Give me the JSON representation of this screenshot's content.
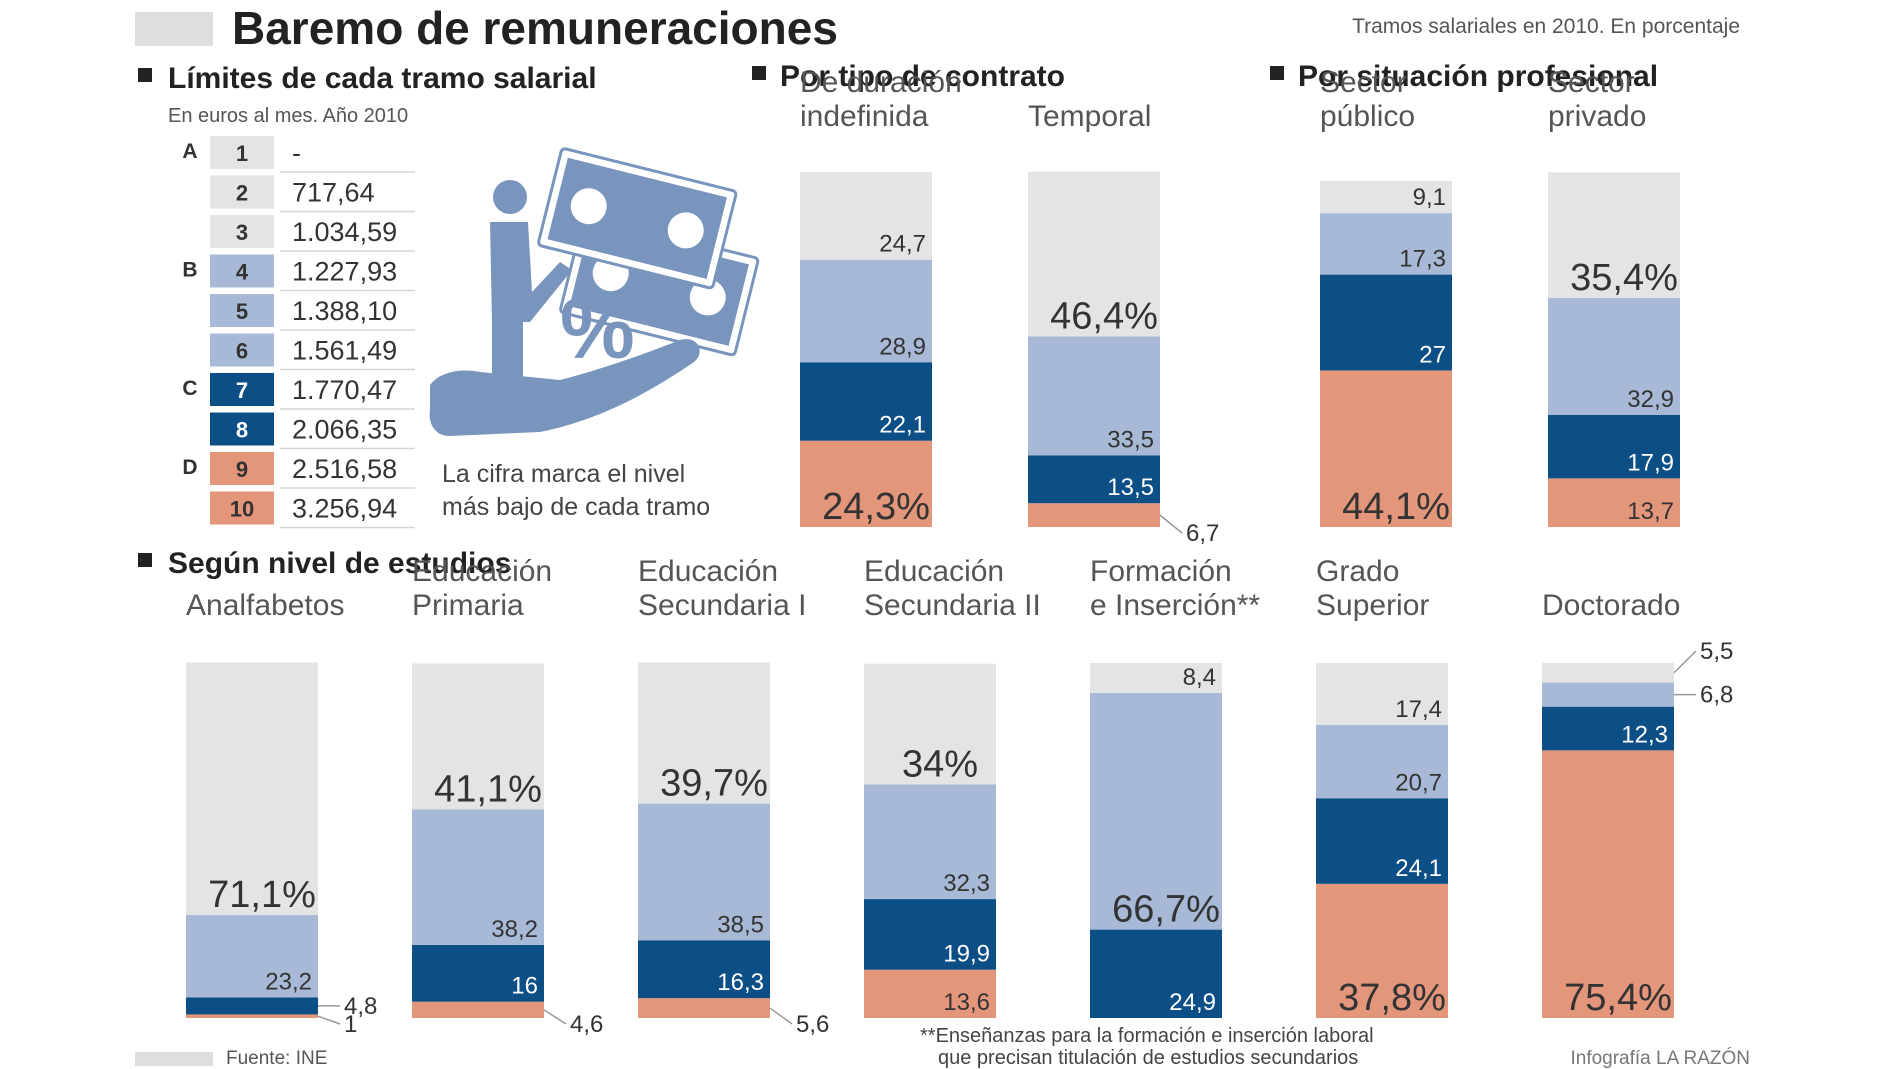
{
  "header": {
    "title": "Baremo de remuneraciones",
    "subtitle": "Tramos salariales en 2010. En porcentaje"
  },
  "colors": {
    "bandA": "#e4e4e4",
    "bandB": "#a7b9d6",
    "bandC": "#0b4f86",
    "bandD": "#e3967a",
    "accent_icon": "#7a95bd",
    "rule": "#bdbdbd"
  },
  "sections": {
    "limits": {
      "heading": "Límites de cada tramo salarial",
      "subheading": "En euros al mes. Año 2010",
      "groups": [
        {
          "letter": "A",
          "rows": [
            {
              "num": "1",
              "value": "-"
            },
            {
              "num": "2",
              "value": "717,64"
            },
            {
              "num": "3",
              "value": "1.034,59"
            }
          ]
        },
        {
          "letter": "B",
          "rows": [
            {
              "num": "4",
              "value": "1.227,93"
            },
            {
              "num": "5",
              "value": "1.388,10"
            },
            {
              "num": "6",
              "value": "1.561,49"
            }
          ]
        },
        {
          "letter": "C",
          "rows": [
            {
              "num": "7",
              "value": "1.770,47"
            },
            {
              "num": "8",
              "value": "2.066,35"
            }
          ]
        },
        {
          "letter": "D",
          "rows": [
            {
              "num": "9",
              "value": "2.516,58"
            },
            {
              "num": "10",
              "value": "3.256,94"
            }
          ]
        }
      ],
      "note": [
        "La cifra marca el nivel",
        "más bajo de cada tramo"
      ],
      "icon": "person-money-percent-icon",
      "percent_glyph": "%"
    },
    "contract": {
      "heading": "Por tipo de contrato"
    },
    "professional": {
      "heading": "Por situación profesional"
    },
    "studies": {
      "heading": "Según nivel de estudios"
    }
  },
  "chart_data": [
    {
      "type": "bar",
      "group": "Por tipo de contrato",
      "stacked": true,
      "categories": [
        [
          "De duración",
          "indefinida"
        ],
        [
          "Temporal"
        ]
      ],
      "series": [
        {
          "band": "D",
          "values": [
            24.3,
            6.7
          ]
        },
        {
          "band": "C",
          "values": [
            22.1,
            13.5
          ]
        },
        {
          "band": "B",
          "values": [
            28.9,
            33.5
          ]
        },
        {
          "band": "A",
          "values": [
            24.7,
            46.4
          ]
        }
      ],
      "labels": [
        [
          "24,3%",
          "22,1",
          "28,9",
          "24,7"
        ],
        [
          "6,7",
          "13,5",
          "33,5",
          "46,4%"
        ]
      ],
      "ylim": [
        0,
        100
      ]
    },
    {
      "type": "bar",
      "group": "Por situación profesional",
      "stacked": true,
      "categories": [
        [
          "Sector",
          "público"
        ],
        [
          "Sector",
          "privado"
        ]
      ],
      "series": [
        {
          "band": "D",
          "values": [
            44.1,
            13.7
          ]
        },
        {
          "band": "C",
          "values": [
            27,
            17.9
          ]
        },
        {
          "band": "B",
          "values": [
            17.3,
            32.9
          ]
        },
        {
          "band": "A",
          "values": [
            9.1,
            35.4
          ]
        }
      ],
      "labels": [
        [
          "44,1%",
          "27",
          "17,3",
          "9,1"
        ],
        [
          "13,7",
          "17,9",
          "32,9",
          "35,4%"
        ]
      ],
      "ylim": [
        0,
        100
      ]
    },
    {
      "type": "bar",
      "group": "Según nivel de estudios",
      "stacked": true,
      "categories": [
        [
          "Analfabetos"
        ],
        [
          "Educación",
          "Primaria"
        ],
        [
          "Educación",
          "Secundaria I"
        ],
        [
          "Educación",
          "Secundaria II"
        ],
        [
          "Formación",
          "e Inserción**"
        ],
        [
          "Grado",
          "Superior"
        ],
        [
          "Doctorado"
        ]
      ],
      "series": [
        {
          "band": "D",
          "values": [
            1,
            4.6,
            5.6,
            13.6,
            0,
            37.8,
            75.4
          ]
        },
        {
          "band": "C",
          "values": [
            4.8,
            16,
            16.3,
            19.9,
            24.9,
            24.1,
            12.3
          ]
        },
        {
          "band": "B",
          "values": [
            23.2,
            38.2,
            38.5,
            32.3,
            66.7,
            20.7,
            6.8
          ]
        },
        {
          "band": "A",
          "values": [
            71.1,
            41.1,
            39.7,
            34,
            8.4,
            17.4,
            5.5
          ]
        }
      ],
      "labels": [
        [
          "1",
          "4,8",
          "23,2",
          "71,1%"
        ],
        [
          "4,6",
          "16",
          "38,2",
          "41,1%"
        ],
        [
          "5,6",
          "16,3",
          "38,5",
          "39,7%"
        ],
        [
          "13,6",
          "19,9",
          "32,3",
          "34%"
        ],
        [
          "",
          "24,9",
          "66,7%",
          "8,4"
        ],
        [
          "37,8%",
          "24,1",
          "20,7",
          "17,4"
        ],
        [
          "75,4%",
          "12,3",
          "6,8",
          "5,5"
        ]
      ],
      "ylim": [
        0,
        100
      ]
    }
  ],
  "footer": {
    "source": "Fuente: INE",
    "footnote": [
      "**Enseñanzas para la formación e inserción laboral",
      "que precisan titulación de estudios secundarios"
    ],
    "credit": "Infografía LA RAZÓN"
  }
}
